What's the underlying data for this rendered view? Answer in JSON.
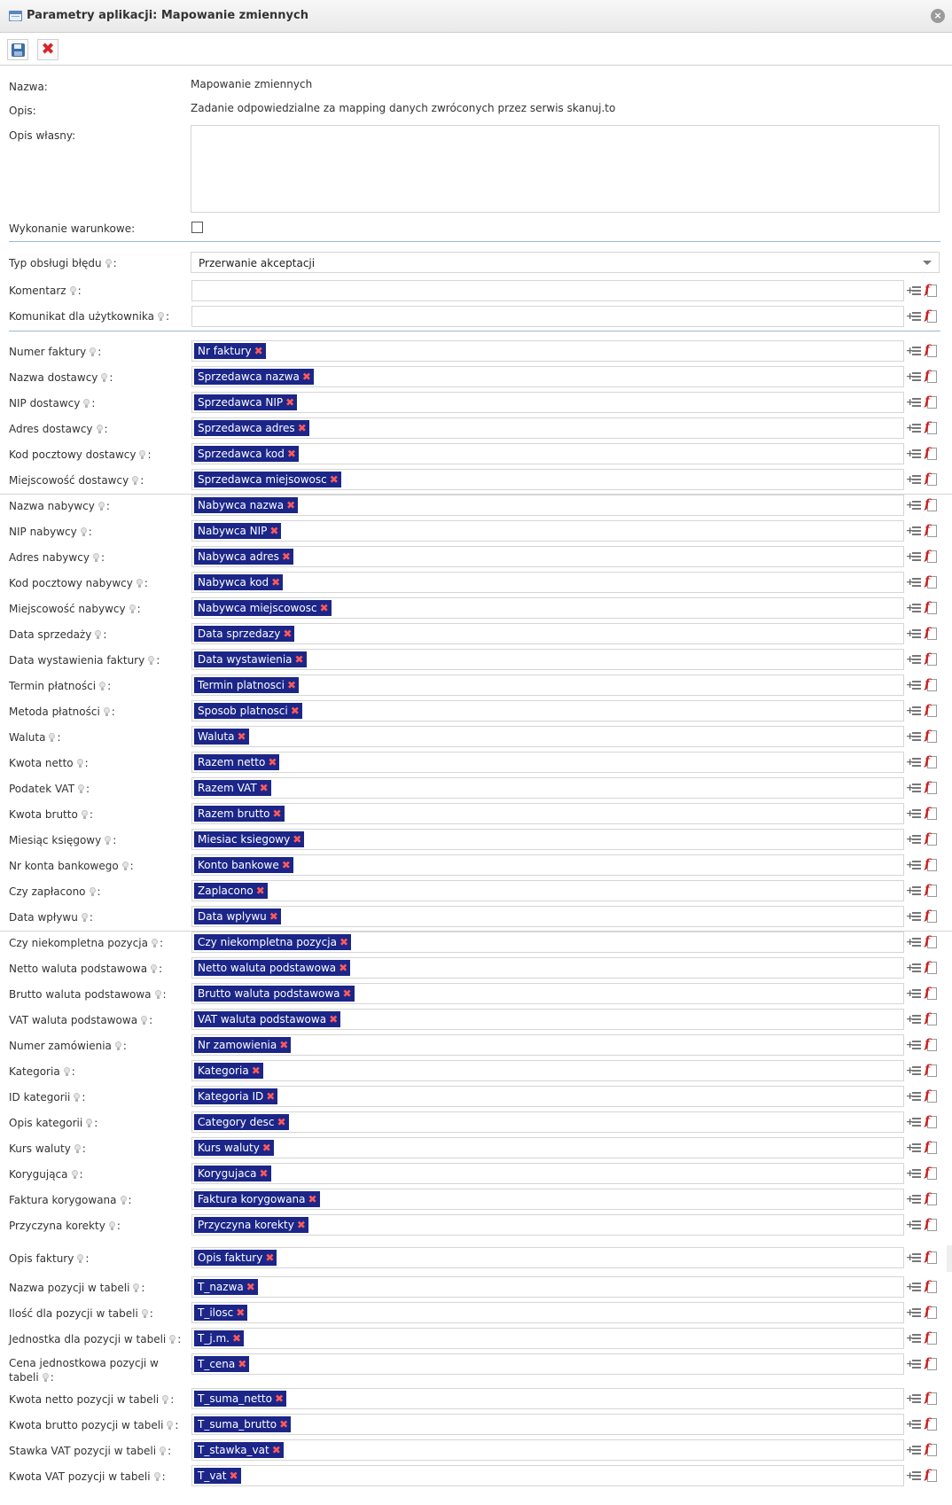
{
  "window": {
    "title": "Parametry aplikacji: Mapowanie zmiennych",
    "close_glyph": "×"
  },
  "toolbar": {
    "save": "floppy-disk-icon",
    "cancel": "red-x-icon",
    "cancel_glyph": "✖"
  },
  "form": {
    "name_label": "Nazwa:",
    "name_value": "Mapowanie zmiennych",
    "desc_label": "Opis:",
    "desc_value": "Zadanie odpowiedzialne za mapping danych zwróconych przez serwis skanuj.to",
    "own_desc_label": "Opis własny:",
    "conditional_label": "Wykonanie warunkowe:",
    "error_type_label": "Typ obsługi błędu",
    "error_type_value": "Przerwanie akceptacji",
    "comment_label": "Komentarz",
    "user_msg_label": "Komunikat dla użytkownika",
    "colon": ":"
  },
  "icons": {
    "hint": "lightbulb-icon",
    "add": "add-variable-icon",
    "formula": "formula-icon"
  },
  "glyphs": {
    "plus": "+",
    "formula": "f",
    "chip_remove": "✖"
  },
  "fields": [
    {
      "label": "Numer faktury",
      "value": "Nr faktury"
    },
    {
      "label": "Nazwa dostawcy",
      "value": "Sprzedawca nazwa"
    },
    {
      "label": "NIP dostawcy",
      "value": "Sprzedawca NIP"
    },
    {
      "label": "Adres dostawcy",
      "value": "Sprzedawca adres"
    },
    {
      "label": "Kod pocztowy dostawcy",
      "value": "Sprzedawca kod"
    },
    {
      "label": "Miejscowość dostawcy",
      "value": "Sprzedawca miejsowosc"
    },
    {
      "label": "Nazwa nabywcy",
      "value": "Nabywca nazwa"
    },
    {
      "label": "NIP nabywcy",
      "value": "Nabywca NIP"
    },
    {
      "label": "Adres nabywcy",
      "value": "Nabywca adres"
    },
    {
      "label": "Kod pocztowy nabywcy",
      "value": "Nabywca kod"
    },
    {
      "label": "Miejscowość nabywcy",
      "value": "Nabywca miejscowosc"
    },
    {
      "label": "Data sprzedaży",
      "value": "Data sprzedazy"
    },
    {
      "label": "Data wystawienia faktury",
      "value": "Data wystawienia"
    },
    {
      "label": "Termin płatności",
      "value": "Termin platnosci"
    },
    {
      "label": "Metoda płatności",
      "value": "Sposob platnosci"
    },
    {
      "label": "Waluta",
      "value": "Waluta"
    },
    {
      "label": "Kwota netto",
      "value": "Razem netto"
    },
    {
      "label": "Podatek VAT",
      "value": "Razem VAT"
    },
    {
      "label": "Kwota brutto",
      "value": "Razem brutto"
    },
    {
      "label": "Miesiąc księgowy",
      "value": "Miesiac ksiegowy"
    },
    {
      "label": "Nr konta bankowego",
      "value": "Konto bankowe"
    },
    {
      "label": "Czy zapłacono",
      "value": "Zaplacono"
    },
    {
      "label": "Data wpływu",
      "value": "Data wplywu"
    },
    {
      "label": "Czy niekompletna pozycja",
      "value": "Czy niekompletna pozycja"
    },
    {
      "label": "Netto waluta podstawowa",
      "value": "Netto waluta podstawowa"
    },
    {
      "label": "Brutto waluta podstawowa",
      "value": "Brutto waluta podstawowa"
    },
    {
      "label": "VAT waluta podstawowa",
      "value": "VAT waluta podstawowa"
    },
    {
      "label": "Numer zamówienia",
      "value": "Nr zamowienia"
    },
    {
      "label": "Kategoria",
      "value": "Kategoria"
    },
    {
      "label": "ID kategorii",
      "value": "Kategoria ID"
    },
    {
      "label": "Opis kategorii",
      "value": "Category desc"
    },
    {
      "label": "Kurs waluty",
      "value": "Kurs waluty"
    },
    {
      "label": "Korygująca",
      "value": "Korygujaca"
    },
    {
      "label": "Faktura korygowana",
      "value": "Faktura korygowana"
    },
    {
      "label": "Przyczyna korekty",
      "value": "Przyczyna korekty"
    },
    {
      "label": "Opis faktury",
      "value": "Opis faktury"
    },
    {
      "label": "Nazwa pozycji w tabeli",
      "value": "T_nazwa"
    },
    {
      "label": "Ilość dla pozycji w tabeli",
      "value": "T_ilosc"
    },
    {
      "label": "Jednostka dla pozycji w tabeli",
      "value": "T_j.m."
    },
    {
      "label": "Cena jednostkowa pozycji w tabeli",
      "value": "T_cena"
    },
    {
      "label": "Kwota netto pozycji w tabeli",
      "value": "T_suma_netto"
    },
    {
      "label": "Kwota brutto pozycji w tabeli",
      "value": "T_suma_brutto"
    },
    {
      "label": "Stawka VAT pozycji w tabeli",
      "value": "T_stawka_vat"
    },
    {
      "label": "Kwota VAT pozycji w tabeli",
      "value": "T_vat"
    }
  ]
}
